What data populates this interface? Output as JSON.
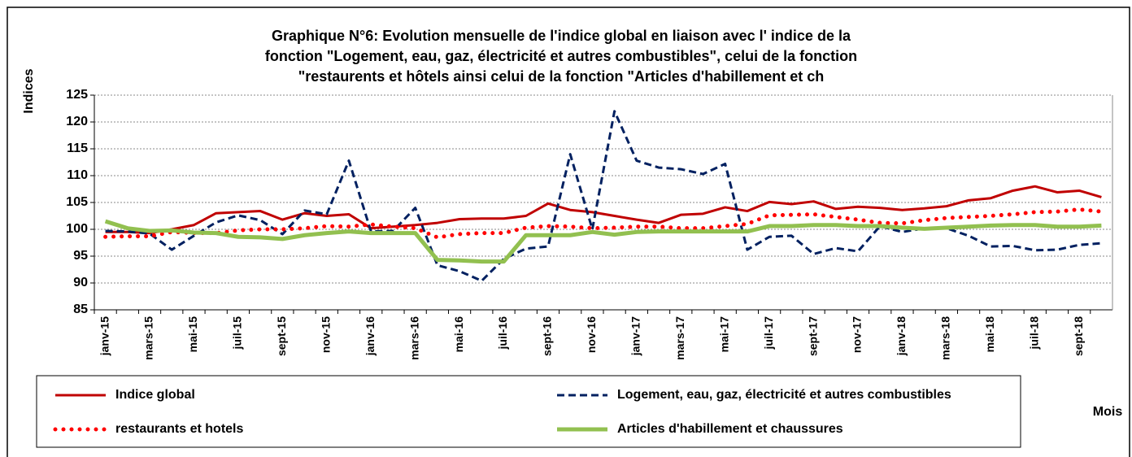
{
  "chart_data": {
    "type": "line",
    "title": [
      "Graphique N°6: Evolution  mensuelle de l'indice global en liaison avec l' indice de la",
      "fonction \"Logement, eau, gaz, électricité et autres combustibles\", celui de la fonction",
      "\"restaurents et hôtels ainsi celui de la fonction \"Articles d'habillement et ch"
    ],
    "y_label": "Indices",
    "x_label": "Mois",
    "categories": [
      "janv-15",
      null,
      "mars-15",
      null,
      "mai-15",
      null,
      "juil-15",
      null,
      "sept-15",
      null,
      "nov-15",
      null,
      "janv-16",
      null,
      "mars-16",
      null,
      "mai-16",
      null,
      "juil-16",
      null,
      "sept-16",
      null,
      "nov-16",
      null,
      "janv-17",
      null,
      "mars-17",
      null,
      "mai-17",
      null,
      "juil-17",
      null,
      "sept-17",
      null,
      "nov-17",
      null,
      "janv-18",
      null,
      "mars-18",
      null,
      "mai-18",
      null,
      "juil-18",
      null,
      "sept-18",
      null
    ],
    "series": [
      {
        "name": "Indice global",
        "color": "#c00000",
        "values": [
          99.5,
          99.5,
          99.3,
          100,
          100.8,
          103,
          103.2,
          103.4,
          101.8,
          103,
          102.5,
          102.8,
          100.2,
          100.5,
          100.8,
          101.2,
          101.9,
          102,
          102,
          102.5,
          104.8,
          103.6,
          103.2,
          102.5,
          101.8,
          101.2,
          102.7,
          102.9,
          104.1,
          103.4,
          105.1,
          104.7,
          105.2,
          103.8,
          104.2,
          104,
          103.6,
          103.9,
          104.3,
          105.4,
          105.8,
          107.2,
          108,
          106.9,
          107.2,
          106
        ]
      },
      {
        "name": "Logement, eau, gaz, électricité et autres combustibles",
        "color": "#002060",
        "values": [
          99.7,
          99.6,
          99.2,
          96.2,
          98.8,
          101.3,
          102.6,
          101.7,
          99.1,
          103.5,
          102.8,
          112.8,
          99.6,
          99.7,
          104,
          93.3,
          92.2,
          90.4,
          94.5,
          96.4,
          96.8,
          114,
          100,
          122,
          112.8,
          111.5,
          111.2,
          110.3,
          112.2,
          96.2,
          98.6,
          98.8,
          95.4,
          96.5,
          95.9,
          100.6,
          99.5,
          100.2,
          100.2,
          98.8,
          96.8,
          96.9,
          96.1,
          96.2,
          97.1,
          97.4
        ]
      },
      {
        "name": "restaurants et hotels",
        "color": "#ff0000",
        "values": [
          98.6,
          98.7,
          98.7,
          99.5,
          99.3,
          99.3,
          99.8,
          100,
          100,
          100.2,
          100.6,
          100.5,
          100.9,
          100.5,
          100.2,
          98.5,
          99.1,
          99.3,
          99.3,
          100.3,
          100.6,
          100.5,
          100.2,
          100.3,
          100.5,
          100.5,
          100.2,
          100.2,
          100.6,
          101,
          102.6,
          102.7,
          102.8,
          102.3,
          101.8,
          101.2,
          101.1,
          101.7,
          102.1,
          102.3,
          102.5,
          102.8,
          103.2,
          103.3,
          103.7,
          103.3
        ]
      },
      {
        "name": "Articles d'habillement et chaussures",
        "color": "#92c050",
        "values": [
          101.5,
          100.2,
          99.7,
          99.8,
          99.4,
          99.3,
          98.6,
          98.5,
          98.2,
          98.9,
          99.3,
          99.6,
          99.3,
          99.3,
          99.3,
          94.3,
          94.2,
          94,
          94,
          98.9,
          98.9,
          98.9,
          99.5,
          99,
          99.5,
          99.6,
          99.6,
          99.6,
          99.6,
          99.6,
          100.6,
          100.6,
          100.8,
          100.8,
          100.6,
          100.6,
          100.3,
          100.1,
          100.3,
          100.5,
          100.7,
          100.8,
          100.8,
          100.5,
          100.5,
          100.7
        ]
      }
    ],
    "ylim": [
      85,
      125
    ],
    "yticks": [
      85,
      90,
      95,
      100,
      105,
      110,
      115,
      120,
      125
    ],
    "grid": true
  }
}
